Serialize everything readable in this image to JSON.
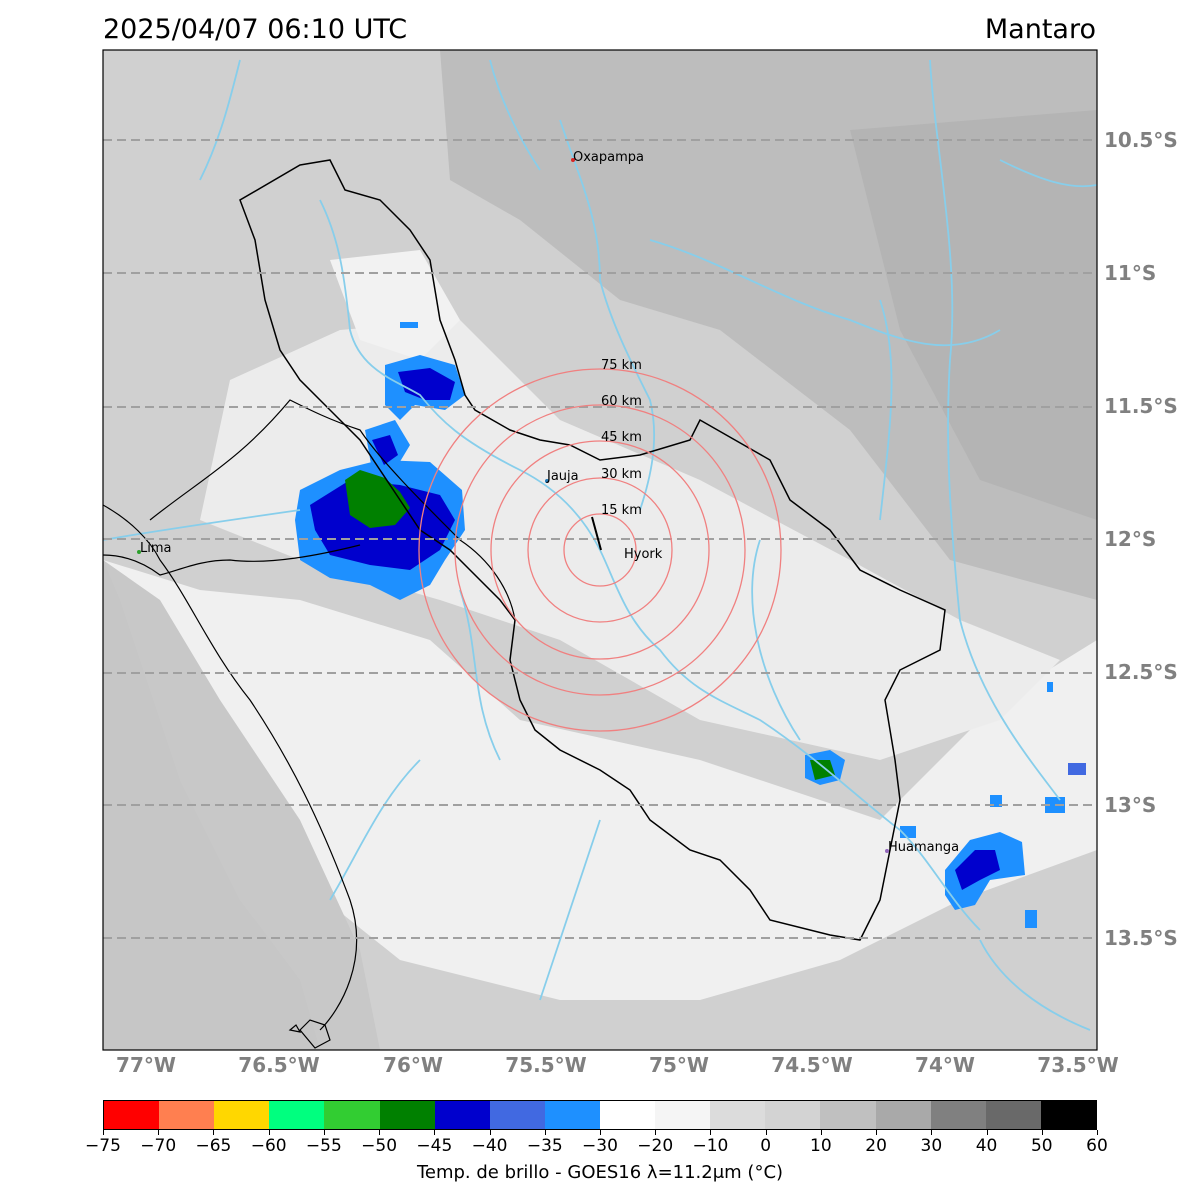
{
  "header": {
    "datetime": "2025/04/07 06:10 UTC",
    "region": "Mantaro"
  },
  "longitude_labels": [
    "77°W",
    "76.5°W",
    "76°W",
    "75.5°W",
    "75°W",
    "74.5°W",
    "74°W",
    "73.5°W"
  ],
  "latitude_labels": [
    "10.5°S",
    "11°S",
    "11.5°S",
    "12°S",
    "12.5°S",
    "13°S",
    "13.5°S"
  ],
  "cities": [
    {
      "name": "Oxapampa",
      "color": "#d62728"
    },
    {
      "name": "Jauja",
      "color": "#1f77b4"
    },
    {
      "name": "Hyork",
      "color": "#000000"
    },
    {
      "name": "Lima",
      "color": "#2ca02c"
    },
    {
      "name": "Huamanga",
      "color": "#9467bd"
    }
  ],
  "range_rings": [
    "15 km",
    "30 km",
    "45 km",
    "60 km",
    "75 km"
  ],
  "colorbar": {
    "colors": [
      "#ff0000",
      "#ff7f50",
      "#ffd700",
      "#00ff7f",
      "#32cd32",
      "#008000",
      "#0000cd",
      "#4169e1",
      "#1e90ff",
      "#ffffff",
      "#f5f5f5",
      "#dcdcdc",
      "#d3d3d3",
      "#c0c0c0",
      "#a9a9a9",
      "#808080",
      "#696969",
      "#000000"
    ],
    "ticks": [
      "−75",
      "−70",
      "−65",
      "−60",
      "−55",
      "−50",
      "−45",
      "−40",
      "−35",
      "−30",
      "−20",
      "−10",
      "0",
      "10",
      "20",
      "30",
      "40",
      "50",
      "60"
    ],
    "label": "Temp. de brillo - GOES16 λ=11.2μm (°C)"
  },
  "colors": {
    "grid": "#a0a0a0",
    "rivers": "#87ceeb",
    "rings": "#f08080",
    "border": "#000000"
  }
}
